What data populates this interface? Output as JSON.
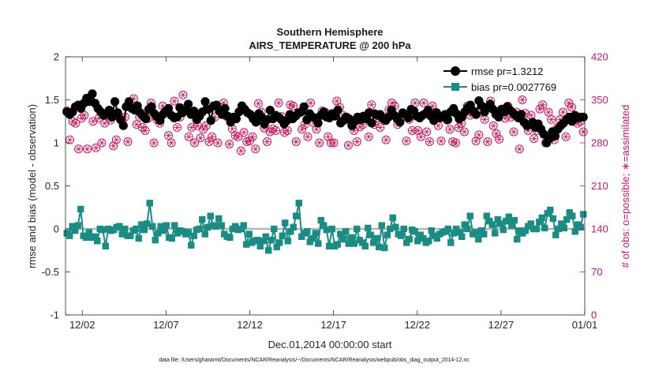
{
  "chart_data": {
    "type": "line",
    "title": "Southern Hemisphere",
    "subtitle": "AIRS_TEMPERATURE @ 200 hPa",
    "xlabel": "Dec.01,2014 00:00:00 start",
    "ylabel": "rmse and bias (model - observation)",
    "ylabel_right": "# of obs: o=possible; ∗=assimilated",
    "footer": "data file: /Users/gharamti/Documents/NCAR/Reanalysis/~/Documents/NCAR/Reanalysis/webpub/obs_diag_output_2014-12.nc",
    "xlim": [
      1,
      32
    ],
    "ylim": [
      -1,
      2
    ],
    "ylim_right": [
      0,
      420
    ],
    "x_ticks": [
      2,
      7,
      12,
      17,
      22,
      27,
      32
    ],
    "x_tick_labels": [
      "12/02",
      "12/07",
      "12/12",
      "12/17",
      "12/22",
      "12/27",
      "01/01"
    ],
    "y_ticks": [
      "-1",
      "-0.5",
      "0",
      "0.5",
      "1",
      "1.5",
      "2"
    ],
    "y_ticks_right": [
      "0",
      "70",
      "140",
      "210",
      "280",
      "350",
      "420"
    ],
    "legend_position": "top-right",
    "series": [
      {
        "name": "rmse pr=1.3212",
        "axis": "left",
        "color": "#000000",
        "marker": "circle",
        "values": [
          1.36,
          1.33,
          1.36,
          1.42,
          1.44,
          1.4,
          1.46,
          1.52,
          1.48,
          1.57,
          1.46,
          1.4,
          1.36,
          1.32,
          1.34,
          1.38,
          1.3,
          1.48,
          1.35,
          1.27,
          1.2,
          1.42,
          1.48,
          1.4,
          1.38,
          1.43,
          1.35,
          1.31,
          1.28,
          1.39,
          1.42,
          1.34,
          1.3,
          1.26,
          1.33,
          1.37,
          1.4,
          1.32,
          1.29,
          1.3,
          1.41,
          1.35,
          1.38,
          1.45,
          1.33,
          1.37,
          1.27,
          1.31,
          1.36,
          1.48,
          1.39,
          1.26,
          1.43,
          1.44,
          1.37,
          1.33,
          1.4,
          1.31,
          1.24,
          1.3,
          1.28,
          1.36,
          1.43,
          1.39,
          1.35,
          1.33,
          1.28,
          1.24,
          1.34,
          1.3,
          1.22,
          1.27,
          1.38,
          1.28,
          1.32,
          1.3,
          1.27,
          1.22,
          1.26,
          1.33,
          1.28,
          1.31,
          1.35,
          1.36,
          1.42,
          1.27,
          1.34,
          1.3,
          1.29,
          1.23,
          1.32,
          1.36,
          1.3,
          1.29,
          1.34,
          1.31,
          1.38,
          1.23,
          1.26,
          1.3,
          1.28,
          1.2,
          1.25,
          1.3,
          1.27,
          1.31,
          1.28,
          1.35,
          1.23,
          1.34,
          1.32,
          1.33,
          1.28,
          1.26,
          1.3,
          1.38,
          1.32,
          1.28,
          1.24,
          1.35,
          1.33,
          1.29,
          1.39,
          1.37,
          1.31,
          1.29,
          1.32,
          1.34,
          1.38,
          1.31,
          1.26,
          1.35,
          1.29,
          1.3,
          1.33,
          1.27,
          1.36,
          1.4,
          1.34,
          1.28,
          1.3,
          1.36,
          1.41,
          1.44,
          1.37,
          1.33,
          1.49,
          1.43,
          1.36,
          1.41,
          1.45,
          1.39,
          1.33,
          1.3,
          1.39,
          1.36,
          1.42,
          1.38,
          1.35,
          1.32,
          1.29,
          1.33,
          1.24,
          1.2,
          1.21,
          1.24,
          1.18,
          1.22,
          1.16,
          1.1,
          1.0,
          1.05,
          1.13,
          1.08,
          1.16,
          1.2,
          1.23,
          1.27,
          1.3,
          1.25,
          1.32,
          1.29,
          1.3,
          1.3
        ]
      },
      {
        "name": "bias pr=0.0027769",
        "axis": "left",
        "color": "#1a8c84",
        "marker": "square",
        "values": [
          -0.05,
          -0.08,
          0.03,
          -0.02,
          0.04,
          0.23,
          -0.08,
          -0.1,
          -0.04,
          -0.1,
          -0.09,
          -0.14,
          0.0,
          -0.01,
          -0.2,
          0.0,
          -0.02,
          -0.01,
          0.02,
          0.03,
          -0.06,
          0.0,
          -0.08,
          -0.08,
          -0.02,
          0.0,
          -0.11,
          0.05,
          -0.01,
          0.06,
          0.3,
          0.03,
          -0.13,
          -0.05,
          0.03,
          -0.02,
          0.04,
          -0.1,
          -0.11,
          0.04,
          -0.05,
          -0.02,
          -0.03,
          -0.06,
          -0.04,
          -0.19,
          -0.08,
          -0.01,
          0.0,
          0.11,
          -0.06,
          0.02,
          0.15,
          0.04,
          0.03,
          0.12,
          0.04,
          -0.06,
          -0.09,
          -0.1,
          0.0,
          0.03,
          -0.01,
          0.0,
          0.04,
          -0.18,
          -0.06,
          -0.16,
          -0.14,
          -0.13,
          -0.2,
          -0.14,
          -0.09,
          -0.25,
          -0.13,
          0.0,
          -0.21,
          -0.16,
          -0.08,
          0.07,
          -0.14,
          -0.03,
          0.02,
          0.15,
          0.3,
          -0.09,
          -0.05,
          -0.03,
          -0.15,
          -0.11,
          -0.05,
          -0.17,
          0.1,
          0.04,
          -0.01,
          -0.2,
          0.0,
          -0.2,
          -0.18,
          -0.06,
          -0.12,
          -0.03,
          -0.17,
          -0.1,
          -0.17,
          0.0,
          -0.13,
          -0.16,
          -0.2,
          0.01,
          -0.07,
          -0.16,
          -0.11,
          -0.21,
          0.04,
          -0.22,
          -0.07,
          0.0,
          0.13,
          0.02,
          -0.06,
          -0.08,
          0.0,
          -0.16,
          -0.12,
          -0.01,
          -0.03,
          -0.14,
          -0.07,
          -0.11,
          -0.16,
          -0.14,
          -0.02,
          -0.08,
          -0.11,
          -0.06,
          -0.04,
          -0.03,
          0.0,
          -0.16,
          -0.05,
          0.0,
          -0.04,
          -0.09,
          0.05,
          0.0,
          0.15,
          -0.06,
          -0.04,
          -0.12,
          -0.02,
          -0.06,
          0.15,
          0.09,
          0.05,
          -0.05,
          0.11,
          0.06,
          -0.01,
          0.09,
          0.14,
          0.04,
          0.1,
          -0.12,
          -0.02,
          -0.05,
          -0.02,
          0.03,
          0.06,
          0.0,
          0.0,
          0.08,
          0.13,
          0.01,
          0.18,
          0.22,
          0.12,
          -0.07,
          0.0,
          0.06,
          0.01,
          0.11,
          0.19,
          0.15,
          -0.03,
          0.05,
          0.02,
          0.17
        ]
      },
      {
        "name": "# of obs possible",
        "axis": "right",
        "color": "#c8175b",
        "marker": "circle-open",
        "values": [
          332,
          285,
          315,
          312,
          270,
          320,
          325,
          270,
          350,
          315,
          272,
          320,
          280,
          312,
          325,
          317,
          275,
          285,
          322,
          315,
          322,
          282,
          340,
          352,
          310,
          322,
          305,
          300,
          320,
          345,
          280,
          318,
          312,
          340,
          330,
          292,
          280,
          348,
          305,
          322,
          358,
          337,
          290,
          305,
          280,
          308,
          288,
          302,
          308,
          282,
          290,
          322,
          280,
          337,
          345,
          323,
          278,
          303,
          292,
          290,
          267,
          297,
          282,
          283,
          290,
          270,
          344,
          330,
          304,
          282,
          298,
          303,
          300,
          345,
          323,
          297,
          300,
          342,
          340,
          282,
          328,
          302,
          310,
          290,
          345,
          313,
          302,
          280,
          332,
          330,
          290,
          280,
          280,
          348,
          338,
          325,
          318,
          276,
          312,
          300,
          282,
          306,
          310,
          322,
          290,
          342,
          310,
          320,
          305,
          322,
          285,
          334,
          345,
          340,
          310,
          322,
          322,
          283,
          318,
          300,
          345,
          300,
          290,
          345,
          298,
          282,
          340,
          330,
          308,
          283,
          325,
          317,
          302,
          282,
          280,
          305,
          312,
          298,
          340,
          325,
          330,
          283,
          293,
          330,
          318,
          282,
          348,
          308,
          295,
          286,
          335,
          320,
          340,
          322,
          298,
          330,
          270,
          350,
          328,
          300,
          325,
          287,
          300,
          335,
          342,
          280,
          330,
          318,
          285,
          305,
          318,
          330,
          290,
          345,
          338,
          320,
          312,
          315,
          298
        ]
      },
      {
        "name": "# of obs assimilated",
        "axis": "right",
        "color": "#c8175b",
        "marker": "star",
        "values": [
          332,
          285,
          315,
          312,
          270,
          320,
          325,
          270,
          350,
          315,
          272,
          320,
          280,
          312,
          325,
          317,
          275,
          285,
          322,
          315,
          322,
          282,
          340,
          352,
          310,
          322,
          305,
          300,
          320,
          345,
          280,
          318,
          312,
          340,
          330,
          292,
          280,
          348,
          305,
          322,
          358,
          337,
          290,
          305,
          280,
          308,
          288,
          302,
          308,
          282,
          290,
          322,
          280,
          337,
          345,
          323,
          278,
          303,
          292,
          290,
          267,
          297,
          282,
          283,
          290,
          270,
          344,
          330,
          304,
          282,
          298,
          303,
          300,
          345,
          323,
          297,
          300,
          342,
          340,
          282,
          328,
          302,
          310,
          290,
          345,
          313,
          302,
          280,
          332,
          330,
          290,
          280,
          280,
          348,
          338,
          325,
          318,
          276,
          312,
          300,
          282,
          306,
          310,
          322,
          290,
          342,
          310,
          320,
          305,
          322,
          285,
          334,
          345,
          340,
          310,
          322,
          322,
          283,
          318,
          300,
          345,
          300,
          290,
          345,
          298,
          282,
          340,
          330,
          308,
          283,
          325,
          317,
          302,
          282,
          280,
          305,
          312,
          298,
          340,
          325,
          330,
          283,
          293,
          330,
          318,
          282,
          348,
          308,
          295,
          286,
          335,
          320,
          340,
          322,
          298,
          330,
          270,
          350,
          328,
          300,
          325,
          287,
          300,
          335,
          342,
          280,
          330,
          318,
          285,
          305,
          318,
          330,
          290,
          345,
          338,
          320,
          312,
          315,
          298
        ]
      }
    ]
  }
}
